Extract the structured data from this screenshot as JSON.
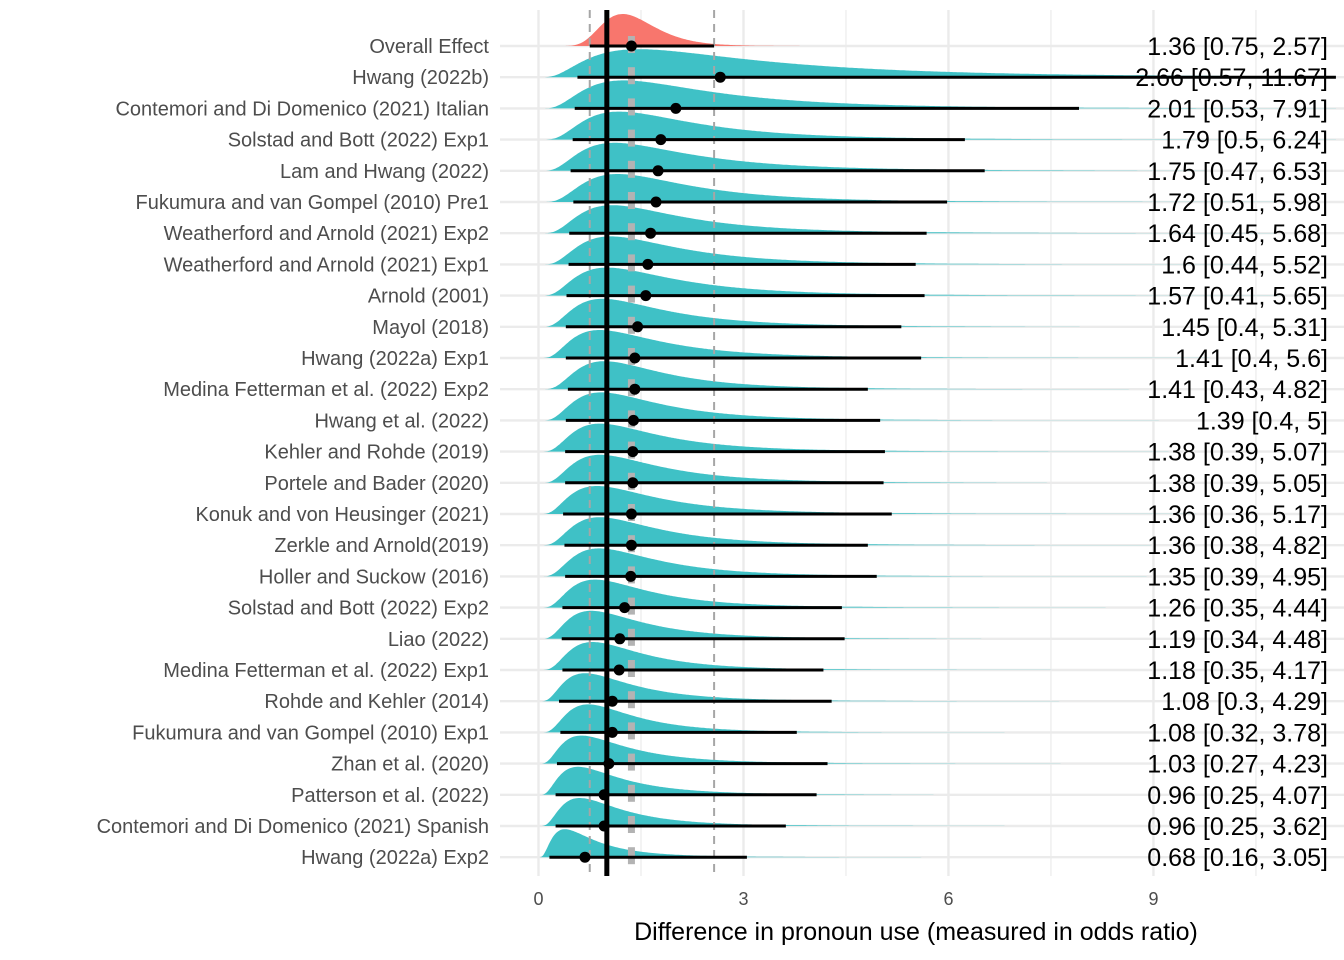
{
  "chart_data": {
    "type": "forest-density",
    "xlabel": "Difference in pronoun use (measured in odds ratio)",
    "xlim": [
      -0.2,
      11.6
    ],
    "xticks": [
      0,
      3,
      6,
      9
    ],
    "xtick_labels": [
      "0",
      "3",
      "6",
      "9"
    ],
    "reference_line": 1,
    "overall_mean": 1.36,
    "overall_ci": [
      0.75,
      2.57
    ],
    "grid": true,
    "colors": {
      "overall": "#F8766D",
      "study": "#3FC1C6",
      "ci_line": "#000000",
      "reference": "#000000",
      "mean_band": "#b3b3b3"
    },
    "studies": [
      {
        "name": "Overall Effect",
        "estimate": 1.36,
        "lower": 0.75,
        "upper": 2.57,
        "label": "1.36 [0.75, 2.57]",
        "overall": true
      },
      {
        "name": "Hwang (2022b)",
        "estimate": 2.66,
        "lower": 0.57,
        "upper": 11.67,
        "label": "2.66 [0.57, 11.67]"
      },
      {
        "name": "Contemori and Di Domenico (2021) Italian",
        "estimate": 2.01,
        "lower": 0.53,
        "upper": 7.91,
        "label": "2.01 [0.53, 7.91]"
      },
      {
        "name": "Solstad and Bott (2022) Exp1",
        "estimate": 1.79,
        "lower": 0.5,
        "upper": 6.24,
        "label": "1.79 [0.5, 6.24]"
      },
      {
        "name": "Lam and Hwang (2022)",
        "estimate": 1.75,
        "lower": 0.47,
        "upper": 6.53,
        "label": "1.75 [0.47, 6.53]"
      },
      {
        "name": "Fukumura and van Gompel (2010) Pre1",
        "estimate": 1.72,
        "lower": 0.51,
        "upper": 5.98,
        "label": "1.72 [0.51, 5.98]"
      },
      {
        "name": "Weatherford and Arnold (2021) Exp2",
        "estimate": 1.64,
        "lower": 0.45,
        "upper": 5.68,
        "label": "1.64 [0.45, 5.68]"
      },
      {
        "name": "Weatherford and Arnold (2021) Exp1",
        "estimate": 1.6,
        "lower": 0.44,
        "upper": 5.52,
        "label": "1.6 [0.44, 5.52]"
      },
      {
        "name": "Arnold (2001)",
        "estimate": 1.57,
        "lower": 0.41,
        "upper": 5.65,
        "label": "1.57 [0.41, 5.65]"
      },
      {
        "name": "Mayol (2018)",
        "estimate": 1.45,
        "lower": 0.4,
        "upper": 5.31,
        "label": "1.45 [0.4, 5.31]"
      },
      {
        "name": "Hwang (2022a) Exp1",
        "estimate": 1.41,
        "lower": 0.4,
        "upper": 5.6,
        "label": "1.41 [0.4, 5.6]"
      },
      {
        "name": "Medina Fetterman et al. (2022) Exp2",
        "estimate": 1.41,
        "lower": 0.43,
        "upper": 4.82,
        "label": "1.41 [0.43, 4.82]"
      },
      {
        "name": "Hwang et al. (2022)",
        "estimate": 1.39,
        "lower": 0.4,
        "upper": 5,
        "label": "1.39 [0.4, 5]"
      },
      {
        "name": "Kehler and Rohde (2019)",
        "estimate": 1.38,
        "lower": 0.39,
        "upper": 5.07,
        "label": "1.38 [0.39, 5.07]"
      },
      {
        "name": "Portele and Bader (2020)",
        "estimate": 1.38,
        "lower": 0.39,
        "upper": 5.05,
        "label": "1.38 [0.39, 5.05]"
      },
      {
        "name": "Konuk and von Heusinger (2021)",
        "estimate": 1.36,
        "lower": 0.36,
        "upper": 5.17,
        "label": "1.36 [0.36, 5.17]"
      },
      {
        "name": "Zerkle and Arnold(2019)",
        "estimate": 1.36,
        "lower": 0.38,
        "upper": 4.82,
        "label": "1.36 [0.38, 4.82]"
      },
      {
        "name": "Holler and Suckow (2016)",
        "estimate": 1.35,
        "lower": 0.39,
        "upper": 4.95,
        "label": "1.35 [0.39, 4.95]"
      },
      {
        "name": "Solstad and Bott (2022) Exp2",
        "estimate": 1.26,
        "lower": 0.35,
        "upper": 4.44,
        "label": "1.26 [0.35, 4.44]"
      },
      {
        "name": "Liao (2022)",
        "estimate": 1.19,
        "lower": 0.34,
        "upper": 4.48,
        "label": "1.19 [0.34, 4.48]"
      },
      {
        "name": "Medina Fetterman et al. (2022) Exp1",
        "estimate": 1.18,
        "lower": 0.35,
        "upper": 4.17,
        "label": "1.18 [0.35, 4.17]"
      },
      {
        "name": "Rohde and Kehler (2014)",
        "estimate": 1.08,
        "lower": 0.3,
        "upper": 4.29,
        "label": "1.08 [0.3, 4.29]"
      },
      {
        "name": "Fukumura and van Gompel (2010) Exp1",
        "estimate": 1.08,
        "lower": 0.32,
        "upper": 3.78,
        "label": "1.08 [0.32, 3.78]"
      },
      {
        "name": "Zhan et al. (2020)",
        "estimate": 1.03,
        "lower": 0.27,
        "upper": 4.23,
        "label": "1.03 [0.27, 4.23]"
      },
      {
        "name": "Patterson et al. (2022)",
        "estimate": 0.96,
        "lower": 0.25,
        "upper": 4.07,
        "label": "0.96 [0.25, 4.07]"
      },
      {
        "name": "Contemori and Di Domenico (2021) Spanish",
        "estimate": 0.96,
        "lower": 0.25,
        "upper": 3.62,
        "label": "0.96 [0.25, 3.62]"
      },
      {
        "name": "Hwang (2022a) Exp2",
        "estimate": 0.68,
        "lower": 0.16,
        "upper": 3.05,
        "label": "0.68 [0.16, 3.05]"
      }
    ]
  }
}
